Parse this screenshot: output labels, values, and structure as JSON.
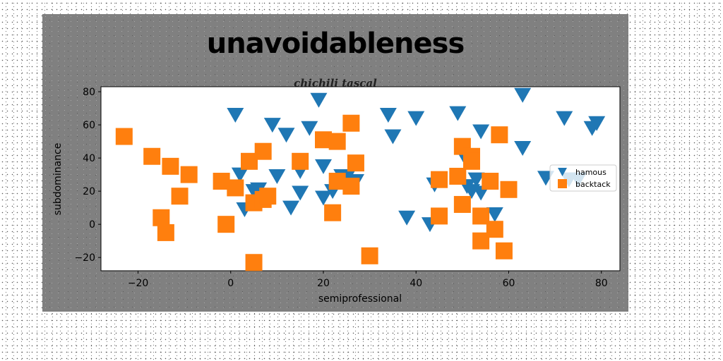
{
  "chart_data": {
    "type": "scatter",
    "title": "unavoidableness",
    "subtitle": "chichili tascal",
    "xlabel": "semiprofessional",
    "ylabel": "subdominance",
    "xlim": [
      -28,
      84
    ],
    "ylim": [
      -28,
      83
    ],
    "xticks": [
      -20,
      0,
      20,
      40,
      60,
      80
    ],
    "yticks": [
      -20,
      0,
      20,
      40,
      60,
      80
    ],
    "grid": false,
    "legend_position": "right",
    "series": [
      {
        "name": "hamous",
        "marker": "triangle-down",
        "color": "#1f77b4",
        "points": [
          [
            1,
            66
          ],
          [
            2,
            30
          ],
          [
            3,
            9
          ],
          [
            5,
            20
          ],
          [
            6,
            21
          ],
          [
            9,
            60
          ],
          [
            10,
            29
          ],
          [
            12,
            54
          ],
          [
            13,
            10
          ],
          [
            15,
            19
          ],
          [
            15,
            32
          ],
          [
            17,
            58
          ],
          [
            19,
            75
          ],
          [
            20,
            35
          ],
          [
            20,
            16
          ],
          [
            22,
            20
          ],
          [
            24,
            29
          ],
          [
            25,
            28
          ],
          [
            27,
            26
          ],
          [
            34,
            66
          ],
          [
            35,
            53
          ],
          [
            38,
            4
          ],
          [
            40,
            64
          ],
          [
            43,
            0
          ],
          [
            44,
            24
          ],
          [
            49,
            67
          ],
          [
            51,
            38
          ],
          [
            51,
            23
          ],
          [
            52,
            20
          ],
          [
            53,
            27
          ],
          [
            54,
            19
          ],
          [
            54,
            56
          ],
          [
            57,
            6
          ],
          [
            63,
            78
          ],
          [
            63,
            46
          ],
          [
            68,
            28
          ],
          [
            72,
            64
          ],
          [
            73,
            27
          ],
          [
            75,
            27
          ],
          [
            78,
            58
          ],
          [
            79,
            61
          ]
        ]
      },
      {
        "name": "backtack",
        "marker": "square",
        "color": "#ff7f0e",
        "points": [
          [
            -23,
            53
          ],
          [
            -17,
            41
          ],
          [
            -15,
            4
          ],
          [
            -14,
            -5
          ],
          [
            -13,
            35
          ],
          [
            -11,
            17
          ],
          [
            -9,
            30
          ],
          [
            -2,
            26
          ],
          [
            -1,
            0
          ],
          [
            1,
            22
          ],
          [
            4,
            38
          ],
          [
            5,
            -23
          ],
          [
            5,
            13
          ],
          [
            7,
            15
          ],
          [
            7,
            44
          ],
          [
            8,
            17
          ],
          [
            15,
            38
          ],
          [
            20,
            51
          ],
          [
            22,
            7
          ],
          [
            23,
            26
          ],
          [
            23,
            50
          ],
          [
            26,
            23
          ],
          [
            26,
            61
          ],
          [
            27,
            37
          ],
          [
            30,
            -19
          ],
          [
            45,
            5
          ],
          [
            45,
            27
          ],
          [
            49,
            29
          ],
          [
            50,
            47
          ],
          [
            50,
            12
          ],
          [
            52,
            41
          ],
          [
            52,
            38
          ],
          [
            54,
            5
          ],
          [
            54,
            -10
          ],
          [
            56,
            26
          ],
          [
            57,
            -3
          ],
          [
            58,
            54
          ],
          [
            59,
            -16
          ],
          [
            60,
            21
          ]
        ]
      }
    ]
  }
}
